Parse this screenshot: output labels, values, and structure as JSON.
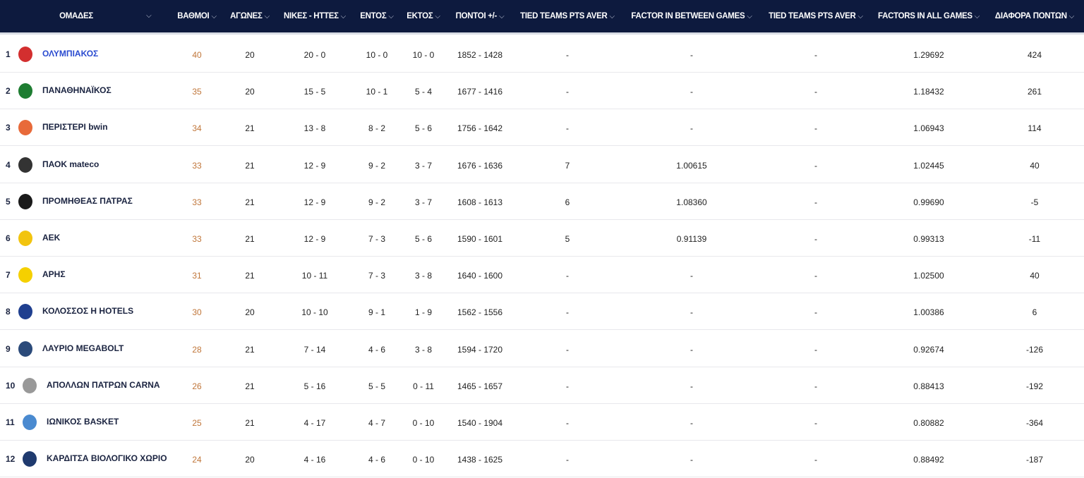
{
  "colors": {
    "header_bg": "#0d1a3e",
    "points": "#c0763a",
    "highlight": "#2a4bd0"
  },
  "headers": [
    "ΟΜΑΔΕΣ",
    "ΒΑΘΜΟΙ",
    "ΑΓΩΝΕΣ",
    "ΝΙΚΕΣ - ΗΤΤΕΣ",
    "ΕΝΤΟΣ",
    "ΕΚΤΟΣ",
    "ΠΟΝΤΟΙ +/-",
    "TIED TEAMS PTS AVER",
    "FACTOR IN BETWEEN GAMES",
    "TIED TEAMS PTS AVER",
    "FACTORS IN ALL GAMES",
    "ΔΙΑΦΟΡΑ ΠΟΝΤΩΝ"
  ],
  "rows": [
    {
      "rank": "1",
      "team": "ΟΛΥΜΠΙΑΚΟΣ",
      "logo_color": "#d32f2f",
      "cells": [
        "40",
        "20",
        "20 - 0",
        "10 - 0",
        "10 - 0",
        "1852 - 1428",
        "-",
        "-",
        "-",
        "1.29692",
        "424"
      ]
    },
    {
      "rank": "2",
      "team": "ΠΑΝΑΘΗΝΑΪΚΟΣ",
      "logo_color": "#1e7d32",
      "cells": [
        "35",
        "20",
        "15 - 5",
        "10 - 1",
        "5 - 4",
        "1677 - 1416",
        "-",
        "-",
        "-",
        "1.18432",
        "261"
      ]
    },
    {
      "rank": "3",
      "team": "ΠΕΡΙΣΤΕΡΙ bwin",
      "logo_color": "#e86a3a",
      "cells": [
        "34",
        "21",
        "13 - 8",
        "8 - 2",
        "5 - 6",
        "1756 - 1642",
        "-",
        "-",
        "-",
        "1.06943",
        "114"
      ]
    },
    {
      "rank": "4",
      "team": "ΠΑΟΚ mateco",
      "logo_color": "#333333",
      "cells": [
        "33",
        "21",
        "12 - 9",
        "9 - 2",
        "3 - 7",
        "1676 - 1636",
        "7",
        "1.00615",
        "-",
        "1.02445",
        "40"
      ]
    },
    {
      "rank": "5",
      "team": "ΠΡΟΜΗΘΕΑΣ ΠΑΤΡΑΣ",
      "logo_color": "#1a1a1a",
      "cells": [
        "33",
        "21",
        "12 - 9",
        "9 - 2",
        "3 - 7",
        "1608 - 1613",
        "6",
        "1.08360",
        "-",
        "0.99690",
        "-5"
      ]
    },
    {
      "rank": "6",
      "team": "ΑΕΚ",
      "logo_color": "#f2c40f",
      "cells": [
        "33",
        "21",
        "12 - 9",
        "7 - 3",
        "5 - 6",
        "1590 - 1601",
        "5",
        "0.91139",
        "-",
        "0.99313",
        "-11"
      ]
    },
    {
      "rank": "7",
      "team": "ΑΡΗΣ",
      "logo_color": "#f5d000",
      "cells": [
        "31",
        "21",
        "10 - 11",
        "7 - 3",
        "3 - 8",
        "1640 - 1600",
        "-",
        "-",
        "-",
        "1.02500",
        "40"
      ]
    },
    {
      "rank": "8",
      "team": "ΚΟΛΟΣΣΟΣ H HOTELS",
      "logo_color": "#1f3f8f",
      "cells": [
        "30",
        "20",
        "10 - 10",
        "9 - 1",
        "1 - 9",
        "1562 - 1556",
        "-",
        "-",
        "-",
        "1.00386",
        "6"
      ]
    },
    {
      "rank": "9",
      "team": "ΛΑΥΡΙΟ MEGABOLT",
      "logo_color": "#2b4a7a",
      "cells": [
        "28",
        "21",
        "7 - 14",
        "4 - 6",
        "3 - 8",
        "1594 - 1720",
        "-",
        "-",
        "-",
        "0.92674",
        "-126"
      ]
    },
    {
      "rank": "10",
      "team": "ΑΠΟΛΛΩΝ ΠΑΤΡΩΝ CARNA",
      "logo_color": "#999999",
      "cells": [
        "26",
        "21",
        "5 - 16",
        "5 - 5",
        "0 - 11",
        "1465 - 1657",
        "-",
        "-",
        "-",
        "0.88413",
        "-192"
      ]
    },
    {
      "rank": "11",
      "team": "ΙΩΝΙΚΟΣ BASKET",
      "logo_color": "#4a8ad0",
      "cells": [
        "25",
        "21",
        "4 - 17",
        "4 - 7",
        "0 - 10",
        "1540 - 1904",
        "-",
        "-",
        "-",
        "0.80882",
        "-364"
      ]
    },
    {
      "rank": "12",
      "team": "ΚΑΡΔΙΤΣΑ ΒΙΟΛΟΓΙΚΟ ΧΩΡΙΟ",
      "logo_color": "#1f3a6e",
      "cells": [
        "24",
        "20",
        "4 - 16",
        "4 - 6",
        "0 - 10",
        "1438 - 1625",
        "-",
        "-",
        "-",
        "0.88492",
        "-187"
      ]
    }
  ]
}
